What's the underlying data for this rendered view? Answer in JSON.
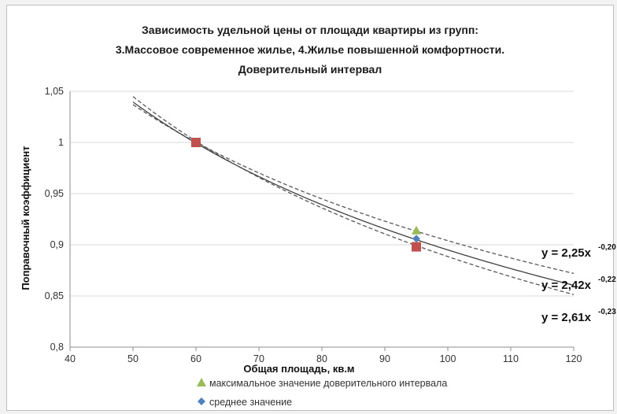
{
  "colors": {
    "frame_border": "#bfbfbf",
    "grid": "#d9d9d9",
    "curve_mean": "#404040",
    "curve_bounds": "#595959",
    "green": "#9bbb59",
    "blue": "#4f81bd",
    "red": "#c0504d"
  },
  "chart_data": {
    "type": "scatter",
    "title_lines": [
      "Зависимость удельной цены от площади квартиры  из групп:",
      "3.Массовое современное жилье, 4.Жилье повышенной комфортности.",
      "Доверительный интервал"
    ],
    "xlabel": "Общая площадь, кв.м",
    "ylabel": "Поправочный коэффициент",
    "xlim": [
      40,
      120
    ],
    "ylim": [
      0.8,
      1.05
    ],
    "x_ticks": [
      40,
      50,
      60,
      70,
      80,
      90,
      100,
      110,
      120
    ],
    "x_tick_labels": [
      "40",
      "50",
      "60",
      "70",
      "80",
      "90",
      "100",
      "110",
      "120"
    ],
    "y_ticks": [
      0.8,
      0.85,
      0.9,
      0.95,
      1.0,
      1.05
    ],
    "y_tick_labels": [
      "0,8",
      "0,85",
      "0,9",
      "0,95",
      "1",
      "1,05"
    ],
    "grid": "horizontal",
    "curves": [
      {
        "style": "dashed",
        "a": 2.25,
        "b": -0.198,
        "x_range": [
          50,
          120
        ]
      },
      {
        "style": "solid",
        "a": 2.42,
        "b": -0.216,
        "x_range": [
          50,
          120
        ]
      },
      {
        "style": "dashed",
        "a": 2.61,
        "b": -0.234,
        "x_range": [
          50,
          120
        ]
      }
    ],
    "equations": [
      {
        "text": "y = 2,25x",
        "exp": "-0,20"
      },
      {
        "text": "y = 2,42x",
        "exp": "-0,22"
      },
      {
        "text": "y = 2,61x",
        "exp": "-0,23"
      }
    ],
    "series": [
      {
        "marker": "triangle",
        "color": "#9bbb59",
        "x": [
          95
        ],
        "y": [
          0.914
        ]
      },
      {
        "marker": "diamond",
        "color": "#4f81bd",
        "x": [
          95
        ],
        "y": [
          0.906
        ]
      },
      {
        "marker": "square",
        "color": "#c0504d",
        "x": [
          60,
          95
        ],
        "y": [
          1.0,
          0.898
        ]
      }
    ],
    "legend": [
      {
        "marker": "triangle",
        "color": "#9bbb59",
        "label": "максимальное значение доверительного интервала"
      },
      {
        "marker": "diamond",
        "color": "#4f81bd",
        "label": "среднее значение"
      }
    ]
  }
}
